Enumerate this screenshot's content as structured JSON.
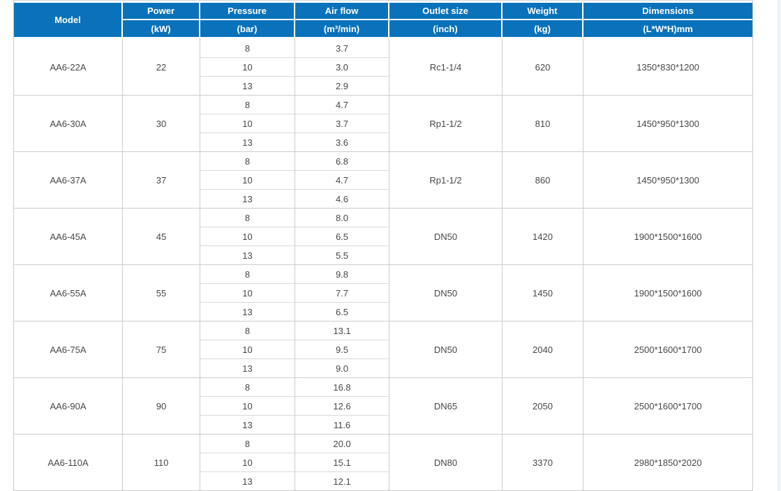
{
  "colors": {
    "header_bg": "#0a72ba",
    "header_text": "#ffffff",
    "grid_border": "#cccccc",
    "sub_divider": "#d9d9d9",
    "body_text": "#474747",
    "page_bg": "#ffffff"
  },
  "table": {
    "columns": [
      {
        "title": "Model",
        "unit": ""
      },
      {
        "title": "Power",
        "unit": "(kW)"
      },
      {
        "title": "Pressure",
        "unit": "(bar)"
      },
      {
        "title": "Air flow",
        "unit": "(m³/min)"
      },
      {
        "title": "Outlet size",
        "unit": "(inch)"
      },
      {
        "title": "Weight",
        "unit": "(kg)"
      },
      {
        "title": "Dimensions",
        "unit": "(L*W*H)mm"
      }
    ],
    "rows": [
      {
        "model": "AA6-22A",
        "power": "22",
        "pressures": [
          "8",
          "10",
          "13"
        ],
        "airflows": [
          "3.7",
          "3.0",
          "2.9"
        ],
        "outlet": "Rc1-1/4",
        "weight": "620",
        "dimensions": "1350*830*1200"
      },
      {
        "model": "AA6-30A",
        "power": "30",
        "pressures": [
          "8",
          "10",
          "13"
        ],
        "airflows": [
          "4.7",
          "3.7",
          "3.6"
        ],
        "outlet": "Rp1-1/2",
        "weight": "810",
        "dimensions": "1450*950*1300"
      },
      {
        "model": "AA6-37A",
        "power": "37",
        "pressures": [
          "8",
          "10",
          "13"
        ],
        "airflows": [
          "6.8",
          "4.7",
          "4.6"
        ],
        "outlet": "Rp1-1/2",
        "weight": "860",
        "dimensions": "1450*950*1300"
      },
      {
        "model": "AA6-45A",
        "power": "45",
        "pressures": [
          "8",
          "10",
          "13"
        ],
        "airflows": [
          "8.0",
          "6.5",
          "5.5"
        ],
        "outlet": "DN50",
        "weight": "1420",
        "dimensions": "1900*1500*1600"
      },
      {
        "model": "AA6-55A",
        "power": "55",
        "pressures": [
          "8",
          "10",
          "13"
        ],
        "airflows": [
          "9.8",
          "7.7",
          "6.5"
        ],
        "outlet": "DN50",
        "weight": "1450",
        "dimensions": "1900*1500*1600"
      },
      {
        "model": "AA6-75A",
        "power": "75",
        "pressures": [
          "8",
          "10",
          "13"
        ],
        "airflows": [
          "13.1",
          "9.5",
          "9.0"
        ],
        "outlet": "DN50",
        "weight": "2040",
        "dimensions": "2500*1600*1700"
      },
      {
        "model": "AA6-90A",
        "power": "90",
        "pressures": [
          "8",
          "10",
          "13"
        ],
        "airflows": [
          "16.8",
          "12.6",
          "11.6"
        ],
        "outlet": "DN65",
        "weight": "2050",
        "dimensions": "2500*1600*1700"
      },
      {
        "model": "AA6-110A",
        "power": "110",
        "pressures": [
          "8",
          "10",
          "13"
        ],
        "airflows": [
          "20.0",
          "15.1",
          "12.1"
        ],
        "outlet": "DN80",
        "weight": "3370",
        "dimensions": "2980*1850*2020"
      }
    ]
  }
}
